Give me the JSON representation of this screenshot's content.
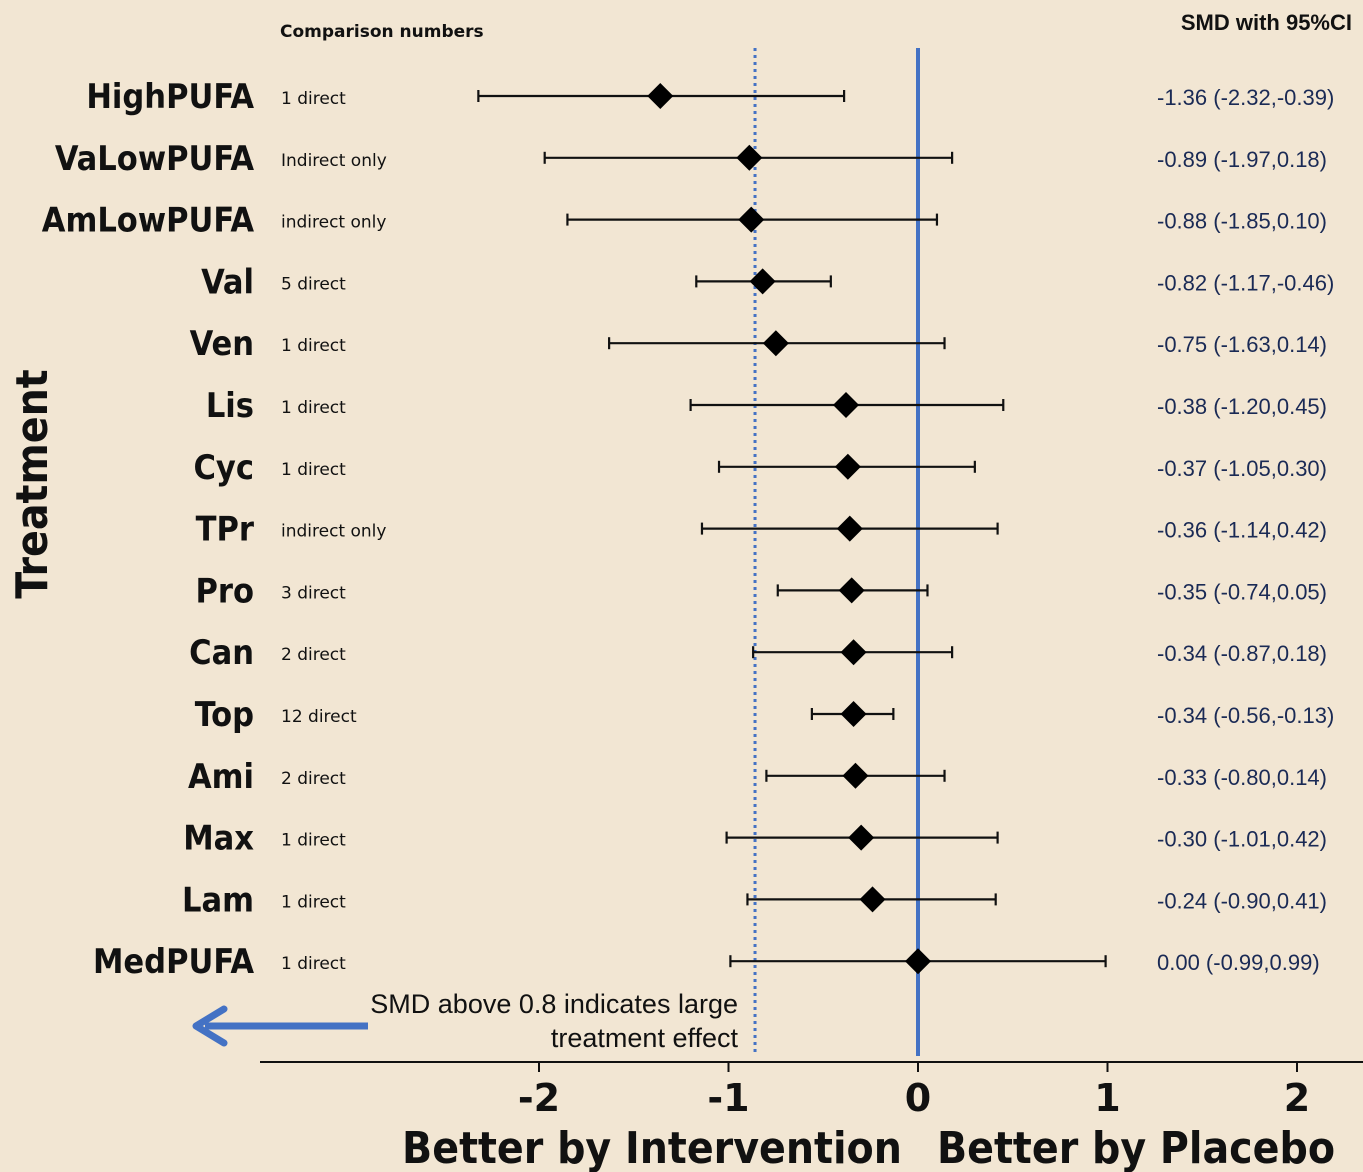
{
  "chart_data": {
    "type": "forest",
    "title": "",
    "xlabel_left": "Better by Intervention",
    "xlabel_right": "Better by Placebo",
    "ylabel": "Treatment",
    "comparison_header": "Comparison numbers",
    "smd_header": "SMD with 95%CI",
    "xlim": [
      -2.5,
      2.3
    ],
    "xticks": [
      -2,
      -1,
      0,
      1,
      2
    ],
    "reference_line": 0,
    "threshold_line": -0.86,
    "annotation": [
      "SMD above 0.8 indicates large",
      "treatment effect"
    ],
    "rows": [
      {
        "treatment": "HighPUFA",
        "comparison": "1 direct",
        "smd": -1.36,
        "lower": -2.32,
        "upper": -0.39,
        "label": "-1.36 (-2.32,-0.39)"
      },
      {
        "treatment": "VaLowPUFA",
        "comparison": "Indirect only",
        "smd": -0.89,
        "lower": -1.97,
        "upper": 0.18,
        "label": "-0.89 (-1.97,0.18)"
      },
      {
        "treatment": "AmLowPUFA",
        "comparison": "indirect only",
        "smd": -0.88,
        "lower": -1.85,
        "upper": 0.1,
        "label": "-0.88 (-1.85,0.10)"
      },
      {
        "treatment": "Val",
        "comparison": "5 direct",
        "smd": -0.82,
        "lower": -1.17,
        "upper": -0.46,
        "label": "-0.82 (-1.17,-0.46)"
      },
      {
        "treatment": "Ven",
        "comparison": "1 direct",
        "smd": -0.75,
        "lower": -1.63,
        "upper": 0.14,
        "label": "-0.75 (-1.63,0.14)"
      },
      {
        "treatment": "Lis",
        "comparison": "1 direct",
        "smd": -0.38,
        "lower": -1.2,
        "upper": 0.45,
        "label": "-0.38 (-1.20,0.45)"
      },
      {
        "treatment": "Cyc",
        "comparison": "1 direct",
        "smd": -0.37,
        "lower": -1.05,
        "upper": 0.3,
        "label": "-0.37 (-1.05,0.30)"
      },
      {
        "treatment": "TPr",
        "comparison": "indirect only",
        "smd": -0.36,
        "lower": -1.14,
        "upper": 0.42,
        "label": "-0.36 (-1.14,0.42)"
      },
      {
        "treatment": "Pro",
        "comparison": "3 direct",
        "smd": -0.35,
        "lower": -0.74,
        "upper": 0.05,
        "label": "-0.35 (-0.74,0.05)"
      },
      {
        "treatment": "Can",
        "comparison": "2 direct",
        "smd": -0.34,
        "lower": -0.87,
        "upper": 0.18,
        "label": "-0.34 (-0.87,0.18)"
      },
      {
        "treatment": "Top",
        "comparison": "12 direct",
        "smd": -0.34,
        "lower": -0.56,
        "upper": -0.13,
        "label": "-0.34 (-0.56,-0.13)"
      },
      {
        "treatment": "Ami",
        "comparison": "2 direct",
        "smd": -0.33,
        "lower": -0.8,
        "upper": 0.14,
        "label": "-0.33 (-0.80,0.14)"
      },
      {
        "treatment": "Max",
        "comparison": "1 direct",
        "smd": -0.3,
        "lower": -1.01,
        "upper": 0.42,
        "label": "-0.30 (-1.01,0.42)"
      },
      {
        "treatment": "Lam",
        "comparison": "1 direct",
        "smd": -0.24,
        "lower": -0.9,
        "upper": 0.41,
        "label": "-0.24 (-0.90,0.41)"
      },
      {
        "treatment": "MedPUFA",
        "comparison": "1 direct",
        "smd": 0.0,
        "lower": -0.99,
        "upper": 0.99,
        "label": "0.00 (-0.99,0.99)"
      }
    ],
    "colors": {
      "background": "#f2e6d3",
      "reference_line": "#4472c4",
      "threshold_line": "#4472c4",
      "arrow": "#4472c4",
      "marker": "#000000"
    }
  }
}
